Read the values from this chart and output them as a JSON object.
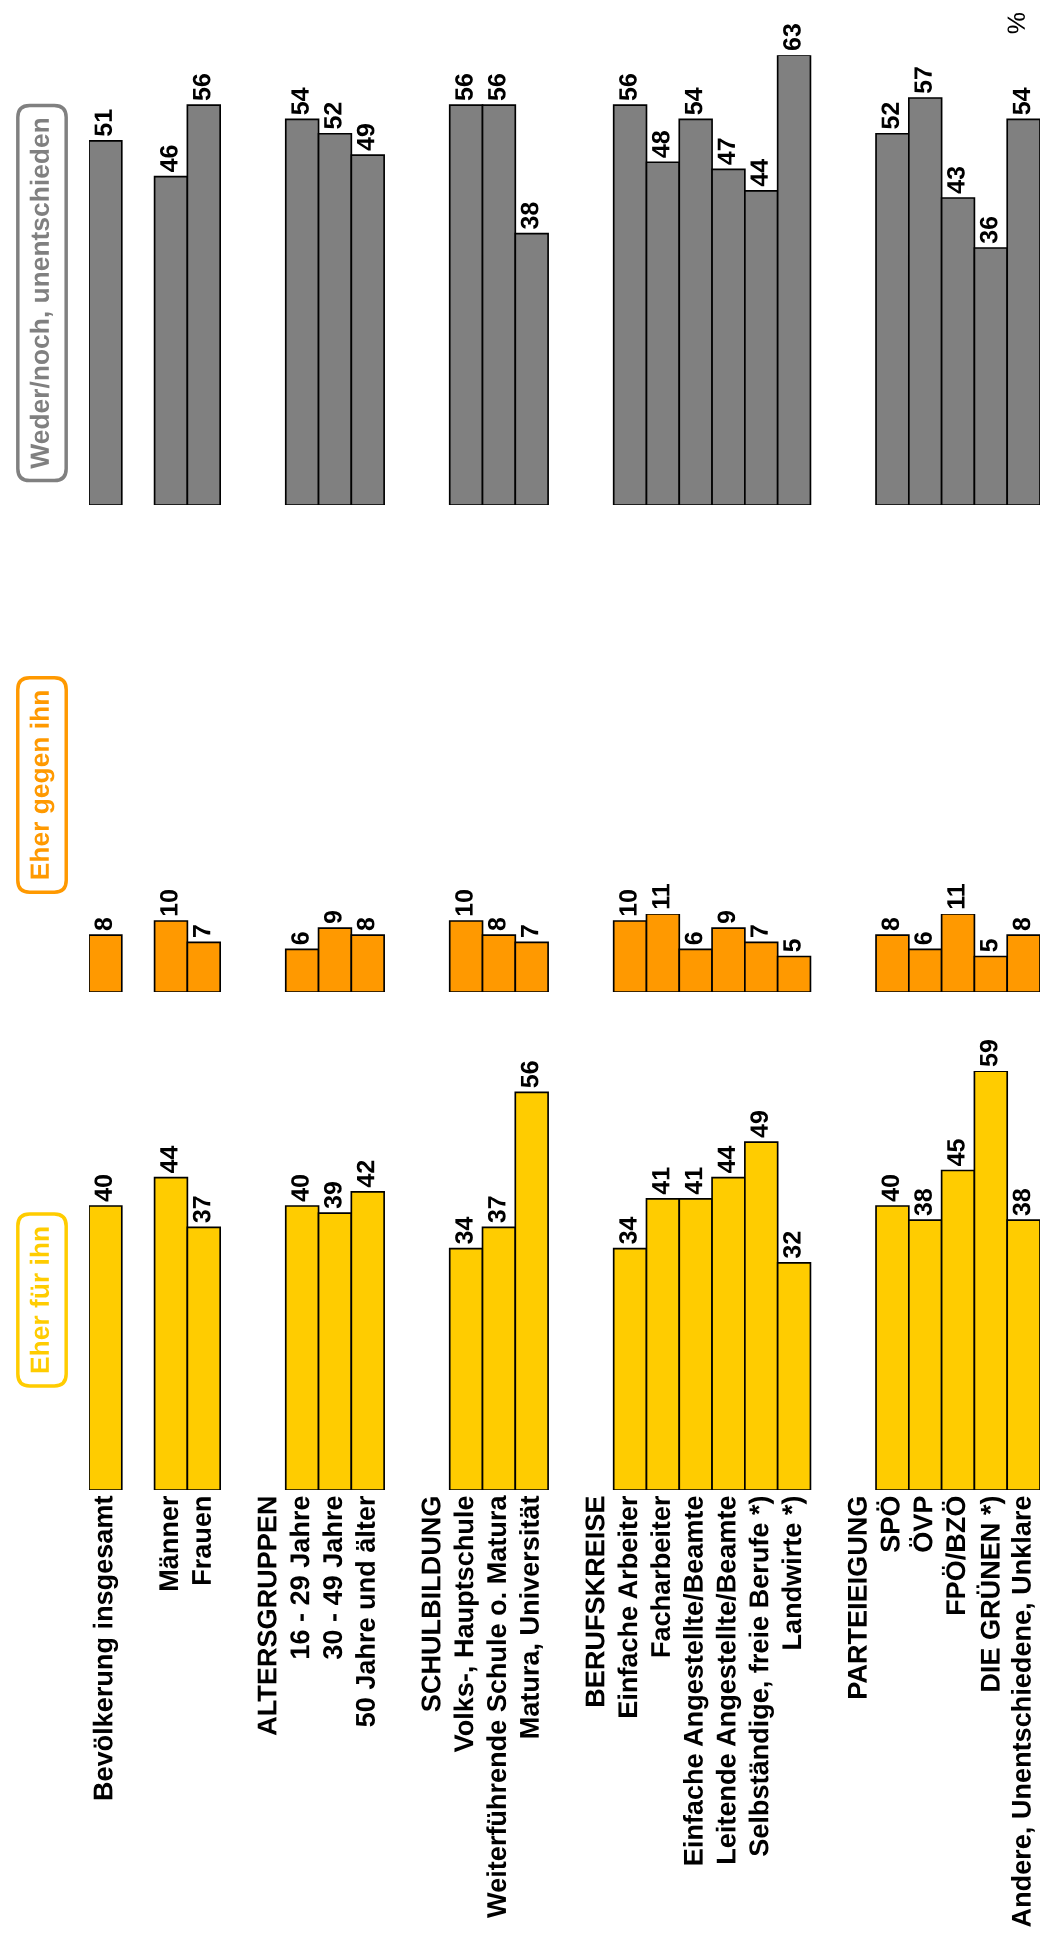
{
  "chart_data": [
    {
      "type": "bar",
      "title": "Eher für ihn",
      "color": "#ffcc00",
      "data_labels": true,
      "categories": [
        "Bevölkerung insgesamt",
        null,
        "Männer",
        "Frauen",
        null,
        "ALTERSGRUPPEN",
        "16 - 29 Jahre",
        "30 - 49 Jahre",
        "50 Jahre und älter",
        null,
        "SCHULBILDUNG",
        "Volks-, Hauptschule",
        "Weiterführende Schule o. Matura",
        "Matura, Universität",
        null,
        "BERUFSKREISE",
        "Einfache Arbeiter",
        "Facharbeiter",
        "Einfache Angestellte/Beamte",
        "Leitende Angestellte/Beamte",
        "Selbständige, freie Berufe *)",
        "Landwirte *)",
        null,
        "PARTEIEIGUNG",
        "SPÖ",
        "ÖVP",
        "FPÖ/BZÖ",
        "DIE GRÜNEN *)",
        "Andere, Unentschiedene, Unklare"
      ],
      "values": [
        40,
        null,
        44,
        37,
        null,
        null,
        40,
        39,
        42,
        null,
        null,
        34,
        37,
        56,
        null,
        null,
        34,
        41,
        41,
        44,
        49,
        32,
        null,
        null,
        40,
        38,
        45,
        59,
        38
      ]
    },
    {
      "type": "bar",
      "title": "Eher gegen ihn",
      "color": "#ff9900",
      "data_labels": true,
      "categories": [
        null,
        null,
        null,
        null,
        null,
        null,
        null,
        null,
        null,
        null,
        null,
        null,
        null,
        null,
        null,
        null,
        null,
        null,
        null,
        null,
        null,
        null,
        null,
        null,
        null,
        null,
        null,
        null,
        null
      ],
      "values": [
        8,
        null,
        10,
        7,
        null,
        null,
        6,
        9,
        8,
        null,
        null,
        10,
        8,
        7,
        null,
        null,
        10,
        11,
        6,
        9,
        7,
        5,
        null,
        null,
        8,
        6,
        11,
        5,
        8
      ]
    },
    {
      "type": "bar",
      "title": "Weder/noch, unentschieden",
      "color": "#808080",
      "data_labels": true,
      "annotations": [
        "%"
      ],
      "categories": [
        null,
        null,
        null,
        null,
        null,
        null,
        null,
        null,
        null,
        null,
        null,
        null,
        null,
        null,
        null,
        null,
        null,
        null,
        null,
        null,
        null,
        null,
        null,
        null,
        null,
        null,
        null,
        null,
        null
      ],
      "values": [
        51,
        null,
        46,
        56,
        null,
        null,
        54,
        52,
        49,
        null,
        null,
        56,
        56,
        38,
        null,
        null,
        56,
        48,
        54,
        47,
        44,
        63,
        null,
        null,
        52,
        57,
        43,
        36,
        54
      ]
    }
  ]
}
